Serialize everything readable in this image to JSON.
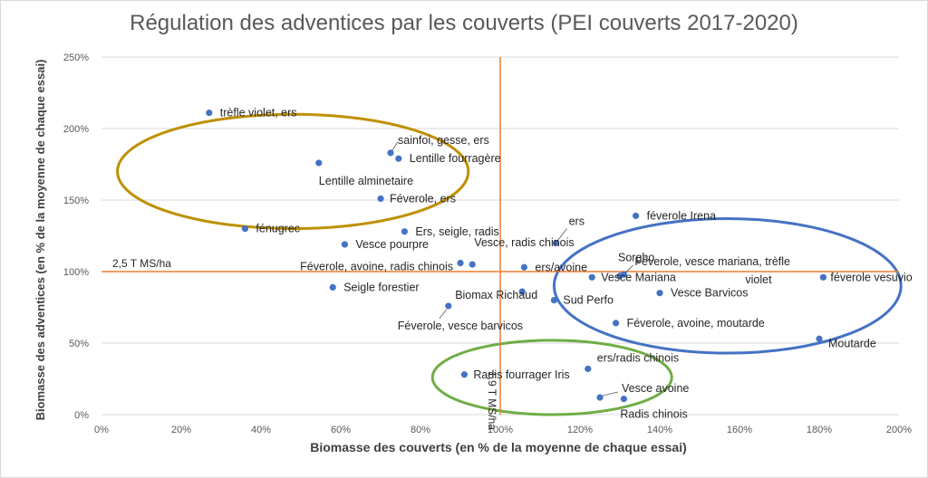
{
  "chart_data": {
    "type": "scatter",
    "title": "Régulation des adventices par les couverts (PEI couverts 2017-2020)",
    "xlabel": "Biomasse des couverts (en % de la moyenne de chaque essai)",
    "ylabel": "Biomasse des adventices (en % de la moyenne de chaque essai)",
    "xlim": [
      0,
      200
    ],
    "ylim": [
      0,
      250
    ],
    "x_ticks": [
      0,
      20,
      40,
      60,
      80,
      100,
      120,
      140,
      160,
      180,
      200
    ],
    "x_tick_labels": [
      "0%",
      "20%",
      "40%",
      "60%",
      "80%",
      "100%",
      "120%",
      "140%",
      "160%",
      "180%",
      "200%"
    ],
    "y_ticks": [
      0,
      50,
      100,
      150,
      200,
      250
    ],
    "y_tick_labels": [
      "0%",
      "50%",
      "100%",
      "150%",
      "200%",
      "250%"
    ],
    "grid": "horizontal",
    "reference_lines": [
      {
        "orientation": "horizontal",
        "value": 100,
        "label": "2,5 T MS/ha",
        "color": "#ed7d31"
      },
      {
        "orientation": "vertical",
        "value": 100,
        "label": "1,9 T MS/ha",
        "color": "#ed7d31"
      }
    ],
    "points": [
      {
        "label": "trèfle violet, ers",
        "x": 27,
        "y": 211
      },
      {
        "label": "sainfoi, gesse, ers",
        "x": 72.5,
        "y": 183
      },
      {
        "label": "Lentille fourragère",
        "x": 74.5,
        "y": 179
      },
      {
        "label": "Lentille alminetaire",
        "x": 54.5,
        "y": 176
      },
      {
        "label": "Féverole, ers",
        "x": 70,
        "y": 151
      },
      {
        "label": "fénugrec",
        "x": 36,
        "y": 130
      },
      {
        "label": "Ers, seigle, radis",
        "x": 76,
        "y": 128
      },
      {
        "label": "Vesce pourpre",
        "x": 61,
        "y": 119
      },
      {
        "label": "ers",
        "x": 114,
        "y": 120
      },
      {
        "label": "Vesce, radis chinois",
        "x": 93,
        "y": 105
      },
      {
        "label": "Féverole, avoine, radis chinois",
        "x": 90,
        "y": 106
      },
      {
        "label": "ers/avoine",
        "x": 106,
        "y": 103
      },
      {
        "label": "féverole Irena",
        "x": 134,
        "y": 139
      },
      {
        "label": "Sorgho",
        "x": 130,
        "y": 97
      },
      {
        "label": "Féverole, vesce mariana, trèfle violet",
        "x": 131,
        "y": 98
      },
      {
        "label": "Vesce Mariana",
        "x": 123,
        "y": 96
      },
      {
        "label": "féverole vesuvio",
        "x": 181,
        "y": 96
      },
      {
        "label": "Seigle forestier",
        "x": 58,
        "y": 89
      },
      {
        "label": "Vesce Barvicos",
        "x": 140,
        "y": 85
      },
      {
        "label": "Biomax Richaud",
        "x": 105.5,
        "y": 86
      },
      {
        "label": "Sud Perfo",
        "x": 113.5,
        "y": 80
      },
      {
        "label": "Féverole, vesce barvicos",
        "x": 87,
        "y": 76
      },
      {
        "label": "Féverole, avoine, moutarde",
        "x": 129,
        "y": 64
      },
      {
        "label": "Moutarde",
        "x": 180,
        "y": 53
      },
      {
        "label": "Radis fourrager Iris",
        "x": 91,
        "y": 28
      },
      {
        "label": "ers/radis chinois",
        "x": 122,
        "y": 32
      },
      {
        "label": "Vesce avoine",
        "x": 125,
        "y": 12
      },
      {
        "label": "Radis chinois",
        "x": 131,
        "y": 11
      }
    ],
    "groups": [
      {
        "name": "yellow-group",
        "color": "#bf9000",
        "center": {
          "x": 48,
          "y": 170
        },
        "radius": {
          "x": 44,
          "y": 40
        }
      },
      {
        "name": "blue-group",
        "color": "#4472c4",
        "center": {
          "x": 157,
          "y": 90
        },
        "radius": {
          "x": 43.5,
          "y": 47
        }
      },
      {
        "name": "green-group",
        "color": "#70ad47",
        "center": {
          "x": 113,
          "y": 26
        },
        "radius": {
          "x": 30,
          "y": 26
        }
      }
    ],
    "colors": {
      "point": "#4472c4",
      "grid": "#d9d9d9",
      "tick": "#595959",
      "label": "#262626"
    }
  }
}
